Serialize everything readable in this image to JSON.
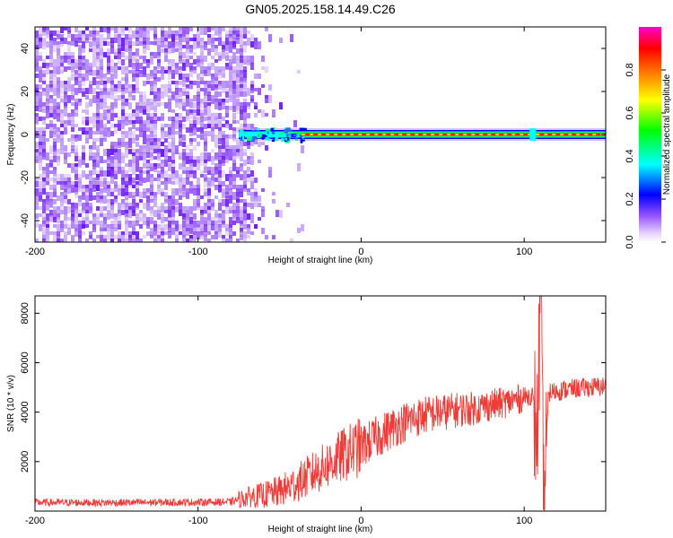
{
  "title": "GN05.2025.158.14.49.C26",
  "colors": {
    "snr_line": "#ee3b37",
    "noise_purple": "#7f33ff",
    "axis": "#000000"
  },
  "chart_data": [
    {
      "type": "heatmap",
      "xlabel": "Height of straight line (km)",
      "ylabel": "Frequency (Hz)",
      "xlim": [
        -200,
        150
      ],
      "ylim": [
        -50,
        50
      ],
      "xticks": [
        -200,
        -100,
        0,
        100
      ],
      "yticks": [
        -40,
        -20,
        0,
        20,
        40
      ],
      "colorbar": {
        "label": "Normalized spectral amplitude",
        "range": [
          0.0,
          1.0
        ],
        "ticks": [
          "0.0",
          "0.2",
          "0.4",
          "0.6",
          "0.8"
        ],
        "colormap": [
          "#ffffff",
          "#cc99ff",
          "#7f33ff",
          "#0000ff",
          "#00ffff",
          "#00ff00",
          "#ffff00",
          "#ff8000",
          "#ff0000",
          "#ff00ff"
        ]
      },
      "features": {
        "noise_region_x": [
          -200,
          -50
        ],
        "signal_onset_x": -75,
        "carrier_frequency_hz": 0,
        "carrier_core_amplitude": 0.95
      }
    },
    {
      "type": "line",
      "xlabel": "Height of straight line (km)",
      "ylabel": "SNR (10 * v/v)",
      "xlim": [
        -200,
        150
      ],
      "ylim": [
        0,
        8700
      ],
      "xticks": [
        -200,
        -100,
        0,
        100
      ],
      "yticks": [
        2000,
        4000,
        6000,
        8000
      ],
      "series": [
        {
          "x": [
            -200,
            -150,
            -100,
            -80,
            -70,
            -60,
            -50,
            -40,
            -30,
            -20,
            -10,
            0,
            10,
            20,
            30,
            40,
            50,
            60,
            70,
            80,
            90,
            100,
            105,
            108,
            110,
            112,
            115,
            120,
            130,
            140,
            150
          ],
          "y": [
            350,
            340,
            360,
            370,
            560,
            650,
            800,
            1100,
            1500,
            1900,
            2300,
            2600,
            3000,
            3400,
            3700,
            3900,
            4000,
            4100,
            4150,
            4300,
            4400,
            4600,
            4700,
            3000,
            8700,
            100,
            4800,
            4850,
            4950,
            5000,
            5050
          ]
        }
      ]
    }
  ]
}
